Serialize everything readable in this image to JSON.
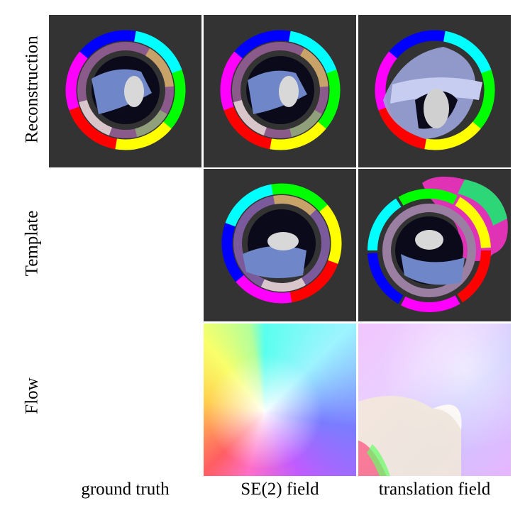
{
  "rows": [
    {
      "key": "reconstruction",
      "label": "Reconstruction"
    },
    {
      "key": "template",
      "label": "Template"
    },
    {
      "key": "flow",
      "label": "Flow"
    }
  ],
  "columns": [
    {
      "key": "ground_truth",
      "label": "ground truth"
    },
    {
      "key": "se2_field",
      "label": "SE(2) field"
    },
    {
      "key": "translation_field",
      "label": "translation field"
    }
  ]
}
